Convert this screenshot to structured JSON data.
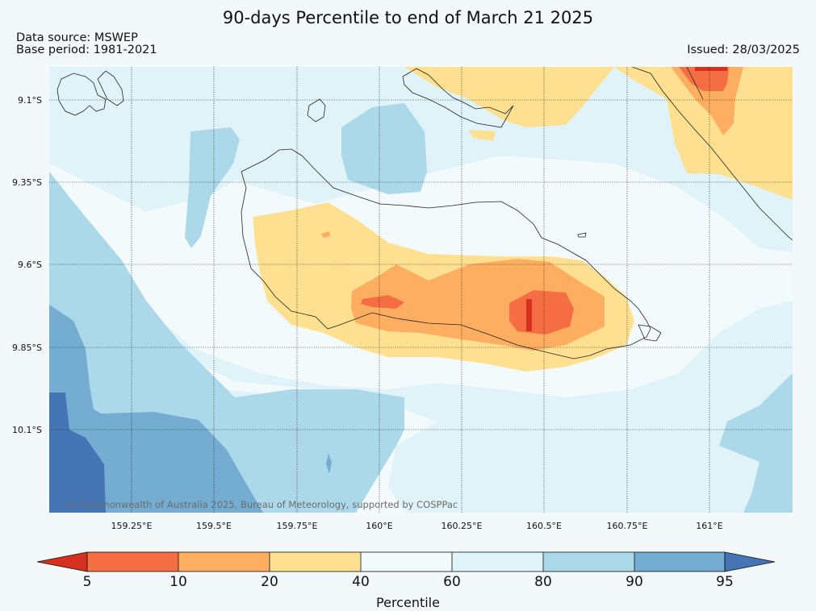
{
  "header": {
    "title": "90-days Percentile to end of March 21 2025",
    "source_line": "Data source: MSWEP",
    "base_period_line": "Base period: 1981-2021",
    "issued_line": "Issued: 28/03/2025"
  },
  "map": {
    "latitude_labels": [
      "9.1°S",
      "9.35°S",
      "9.6°S",
      "9.85°S",
      "10.1°S"
    ],
    "longitude_labels": [
      "159.25°E",
      "159.5°E",
      "159.75°E",
      "160°E",
      "160.25°E",
      "160.5°E",
      "160.75°E",
      "161°E"
    ],
    "copyright": "© Commonwealth of Australia 2025, Bureau of Meteorology, supported by COSPPac"
  },
  "legend": {
    "title": "Percentile",
    "ticks": [
      "5",
      "10",
      "20",
      "40",
      "60",
      "80",
      "90",
      "95"
    ],
    "colors": {
      "below_5": "#d7301f",
      "p5_10": "#f46d43",
      "p10_20": "#fdae61",
      "p20_40": "#fee090",
      "p40_60": "#f3fafc",
      "p60_80": "#e0f3f8",
      "p80_90": "#abd9e9",
      "p90_95": "#74add1",
      "above_95": "#4575b4"
    }
  }
}
